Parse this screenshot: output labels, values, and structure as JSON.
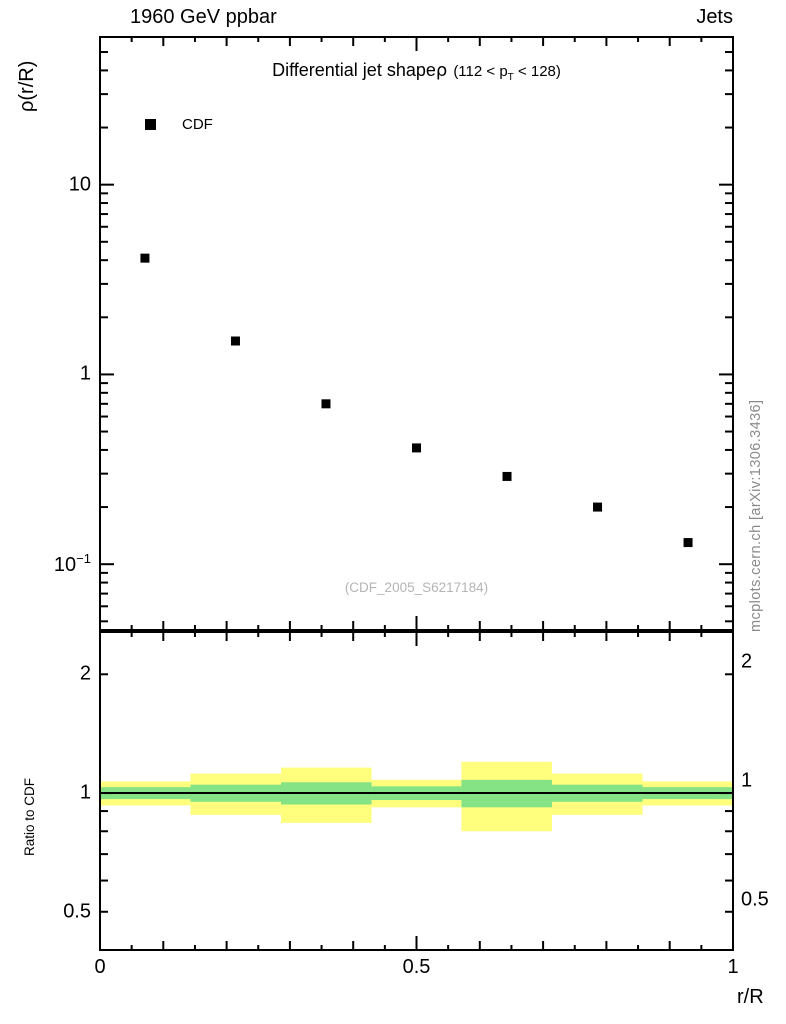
{
  "header": {
    "left": "1960 GeV ppbar",
    "right": "Jets"
  },
  "title": {
    "main": "Differential jet shape",
    "rho": "ρ",
    "cut_pre": "(112 < p",
    "cut_sub": "T",
    "cut_post": " < 128)"
  },
  "ref_label": "(CDF_2005_S6217184)",
  "watermark": "mcplots.cern.ch [arXiv:1306.3436]",
  "chart_data": {
    "type": "scatter",
    "xlabel": "r/R",
    "xlim": [
      0,
      1
    ],
    "xticks": [
      {
        "v": 0,
        "label": "0"
      },
      {
        "v": 0.5,
        "label": "0.5"
      },
      {
        "v": 1,
        "label": "1"
      }
    ],
    "main": {
      "ylabel": "ρ(r/R)",
      "yscale": "log",
      "ylim": [
        0.045,
        60
      ],
      "yticks": [
        {
          "v": 10,
          "label": "10"
        },
        {
          "v": 1,
          "label": "1"
        },
        {
          "v": 0.1,
          "label": "10",
          "sup": "−1"
        }
      ],
      "series": [
        {
          "name": "CDF",
          "marker": "filled-square",
          "color": "#000000",
          "x": [
            0.071,
            0.214,
            0.357,
            0.5,
            0.643,
            0.786,
            0.929
          ],
          "y": [
            4.1,
            1.5,
            0.7,
            0.41,
            0.29,
            0.2,
            0.13
          ]
        }
      ]
    },
    "ratio": {
      "ylabel": "Ratio to CDF",
      "yscale": "log",
      "ylim": [
        0.4,
        2.56
      ],
      "yticks": [
        {
          "v": 2,
          "label": "2"
        },
        {
          "v": 1,
          "label": "1"
        },
        {
          "v": 0.5,
          "label": "0.5"
        }
      ],
      "baseline": 1,
      "bin_edges": [
        0,
        0.143,
        0.286,
        0.429,
        0.571,
        0.714,
        0.857,
        1
      ],
      "bands": {
        "yellow": {
          "color": "#ffff7d",
          "half_widths": [
            0.07,
            0.12,
            0.16,
            0.08,
            0.2,
            0.12,
            0.07
          ]
        },
        "green": {
          "color": "#85e285",
          "half_widths": [
            0.035,
            0.05,
            0.065,
            0.04,
            0.08,
            0.05,
            0.035
          ]
        }
      }
    }
  }
}
